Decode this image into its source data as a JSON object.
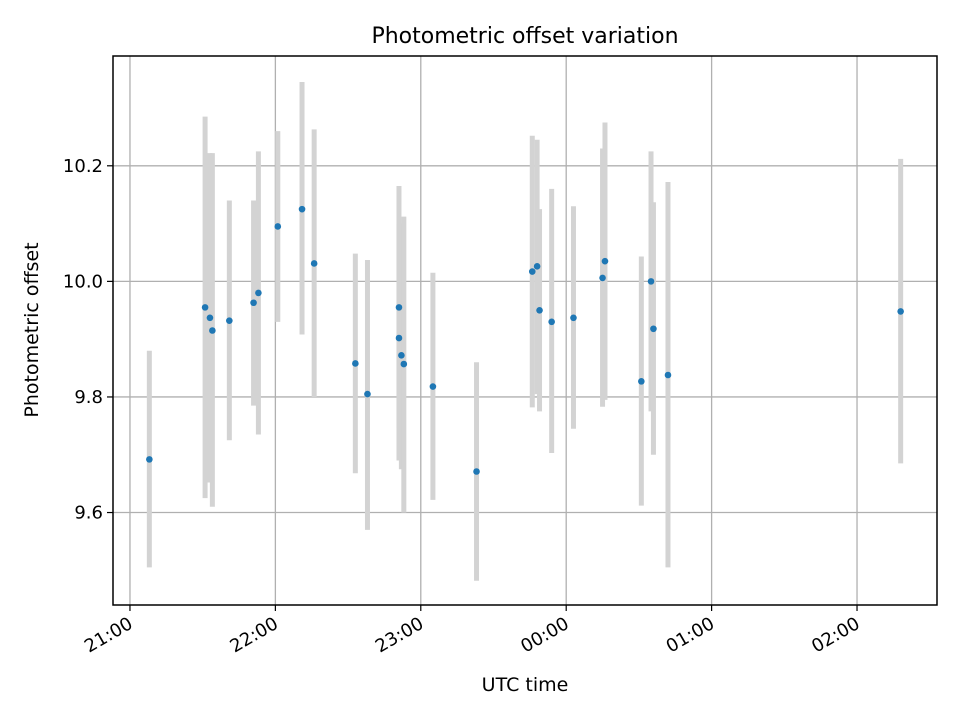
{
  "chart_data": {
    "type": "scatter",
    "title": "Photometric offset variation",
    "xlabel": "UTC time",
    "ylabel": "Photometric offset",
    "x_tick_labels": [
      "21:00",
      "22:00",
      "23:00",
      "00:00",
      "01:00",
      "02:00"
    ],
    "x_ticks": [
      "21:00",
      "22:00",
      "23:00",
      "00:00",
      "01:00",
      "02:00"
    ],
    "xlim": [
      "20:53",
      "02:33"
    ],
    "y_ticks": [
      9.6,
      9.8,
      10.0,
      10.2
    ],
    "y_tick_labels": [
      "9.6",
      "9.8",
      "10.0",
      "10.2"
    ],
    "ylim": [
      9.44,
      10.39
    ],
    "grid": true,
    "colors": {
      "points": "#1f77b4",
      "errorbars": "#d3d3d3",
      "grid": "#b0b0b0"
    },
    "points": [
      {
        "x": "21:08",
        "y": 9.692,
        "lo": 9.505,
        "hi": 9.88
      },
      {
        "x": "21:31",
        "y": 9.955,
        "lo": 9.625,
        "hi": 10.285
      },
      {
        "x": "21:33",
        "y": 9.937,
        "lo": 9.652,
        "hi": 10.222
      },
      {
        "x": "21:34",
        "y": 9.915,
        "lo": 9.61,
        "hi": 10.222
      },
      {
        "x": "21:41",
        "y": 9.932,
        "lo": 9.725,
        "hi": 10.14
      },
      {
        "x": "21:51",
        "y": 9.963,
        "lo": 9.785,
        "hi": 10.14
      },
      {
        "x": "21:53",
        "y": 9.98,
        "lo": 9.735,
        "hi": 10.225
      },
      {
        "x": "22:01",
        "y": 10.095,
        "lo": 9.93,
        "hi": 10.26
      },
      {
        "x": "22:11",
        "y": 10.125,
        "lo": 9.908,
        "hi": 10.345
      },
      {
        "x": "22:16",
        "y": 10.031,
        "lo": 9.8,
        "hi": 10.263
      },
      {
        "x": "22:33",
        "y": 9.858,
        "lo": 9.668,
        "hi": 10.048
      },
      {
        "x": "22:38",
        "y": 9.805,
        "lo": 9.57,
        "hi": 10.037
      },
      {
        "x": "22:51",
        "y": 9.955,
        "lo": 9.745,
        "hi": 10.165
      },
      {
        "x": "22:51",
        "y": 9.902,
        "lo": 9.69,
        "hi": 10.1
      },
      {
        "x": "22:52",
        "y": 9.872,
        "lo": 9.675,
        "hi": 10.07
      },
      {
        "x": "22:53",
        "y": 9.857,
        "lo": 9.6,
        "hi": 10.112
      },
      {
        "x": "23:05",
        "y": 9.818,
        "lo": 9.622,
        "hi": 10.015
      },
      {
        "x": "23:23",
        "y": 9.671,
        "lo": 9.482,
        "hi": 9.86
      },
      {
        "x": "23:46",
        "y": 10.017,
        "lo": 9.782,
        "hi": 10.252
      },
      {
        "x": "23:48",
        "y": 10.026,
        "lo": 9.805,
        "hi": 10.245
      },
      {
        "x": "23:49",
        "y": 9.95,
        "lo": 9.775,
        "hi": 10.125
      },
      {
        "x": "23:54",
        "y": 9.93,
        "lo": 9.703,
        "hi": 10.16
      },
      {
        "x": "00:03",
        "y": 9.937,
        "lo": 9.745,
        "hi": 10.13
      },
      {
        "x": "00:15",
        "y": 10.006,
        "lo": 9.783,
        "hi": 10.23
      },
      {
        "x": "00:16",
        "y": 10.035,
        "lo": 9.795,
        "hi": 10.275
      },
      {
        "x": "00:31",
        "y": 9.827,
        "lo": 9.612,
        "hi": 10.043
      },
      {
        "x": "00:35",
        "y": 10.0,
        "lo": 9.775,
        "hi": 10.225
      },
      {
        "x": "00:36",
        "y": 9.918,
        "lo": 9.7,
        "hi": 10.137
      },
      {
        "x": "00:42",
        "y": 9.838,
        "lo": 9.505,
        "hi": 10.172
      },
      {
        "x": "02:18",
        "y": 9.948,
        "lo": 9.685,
        "hi": 10.212
      }
    ]
  }
}
